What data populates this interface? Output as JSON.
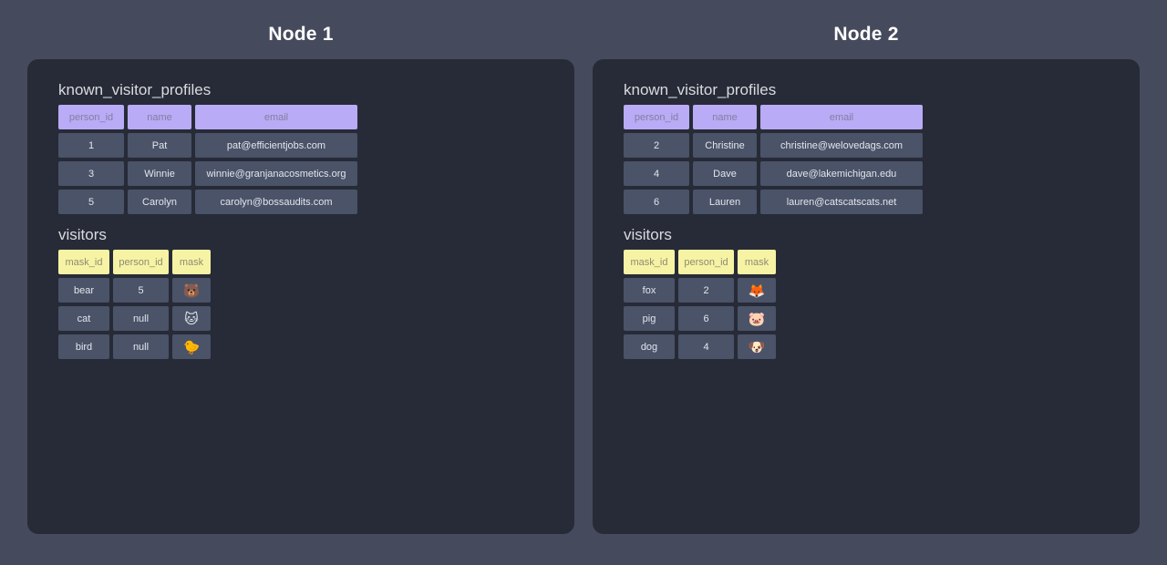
{
  "colors": {
    "page_background": "#454a5c",
    "panel_background": "#272b37",
    "profiles_header_background": "#b9abf5",
    "visitors_header_background": "#f6f3a4",
    "cell_background": "#4a5368",
    "title_text": "#ffffff"
  },
  "nodes": [
    {
      "title": "Node 1",
      "tables": [
        {
          "name": "known_visitor_profiles",
          "columns": [
            "person_id",
            "name",
            "email"
          ],
          "rows": [
            [
              "1",
              "Pat",
              "pat@efficientjobs.com"
            ],
            [
              "3",
              "Winnie",
              "winnie@granjanacosmetics.org"
            ],
            [
              "5",
              "Carolyn",
              "carolyn@bossaudits.com"
            ]
          ]
        },
        {
          "name": "visitors",
          "columns": [
            "mask_id",
            "person_id",
            "mask"
          ],
          "rows": [
            [
              "bear",
              "5",
              "🐻"
            ],
            [
              "cat",
              "null",
              "🐱"
            ],
            [
              "bird",
              "null",
              "🐤"
            ]
          ]
        }
      ]
    },
    {
      "title": "Node 2",
      "tables": [
        {
          "name": "known_visitor_profiles",
          "columns": [
            "person_id",
            "name",
            "email"
          ],
          "rows": [
            [
              "2",
              "Christine",
              "christine@welovedags.com"
            ],
            [
              "4",
              "Dave",
              "dave@lakemichigan.edu"
            ],
            [
              "6",
              "Lauren",
              "lauren@catscatscats.net"
            ]
          ]
        },
        {
          "name": "visitors",
          "columns": [
            "mask_id",
            "person_id",
            "mask"
          ],
          "rows": [
            [
              "fox",
              "2",
              "🦊"
            ],
            [
              "pig",
              "6",
              "🐷"
            ],
            [
              "dog",
              "4",
              "🐶"
            ]
          ]
        }
      ]
    }
  ]
}
